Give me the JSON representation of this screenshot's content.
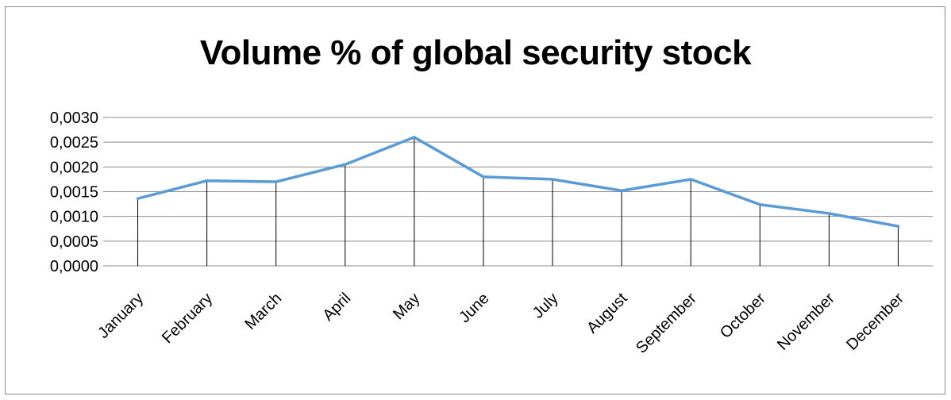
{
  "chart_data": {
    "type": "line",
    "title": "Volume % of global security stock",
    "xlabel": "",
    "ylabel": "",
    "categories": [
      "January",
      "February",
      "March",
      "April",
      "May",
      "June",
      "July",
      "August",
      "September",
      "October",
      "November",
      "December"
    ],
    "series": [
      {
        "values": [
          0.00136,
          0.00172,
          0.0017,
          0.00205,
          0.0026,
          0.0018,
          0.00175,
          0.00152,
          0.00175,
          0.00124,
          0.00106,
          0.0008
        ],
        "color": "#5b9bd5"
      }
    ],
    "ylim": [
      0,
      0.003
    ],
    "yticks": [
      "0,0000",
      "0,0005",
      "0,0010",
      "0,0015",
      "0,0020",
      "0,0025",
      "0,0030"
    ],
    "grid": true,
    "drop_lines": true,
    "legend": "none"
  }
}
